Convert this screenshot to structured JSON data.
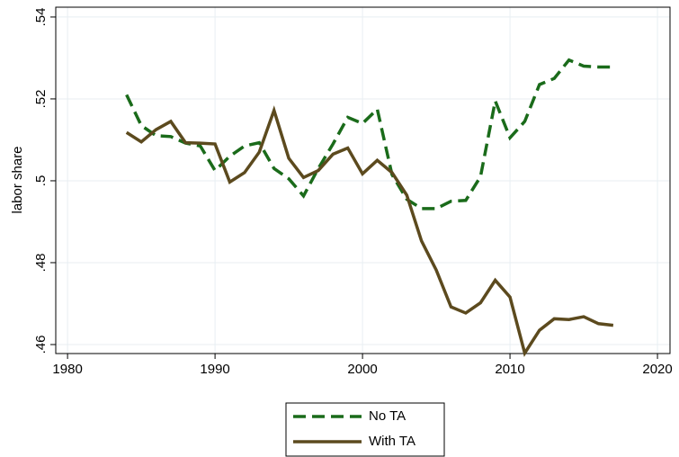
{
  "chart_data": {
    "type": "line",
    "y_label": "labor share",
    "x": [
      1984,
      1985,
      1986,
      1987,
      1988,
      1989,
      1990,
      1991,
      1992,
      1993,
      1994,
      1995,
      1996,
      1997,
      1998,
      1999,
      2000,
      2001,
      2002,
      2003,
      2004,
      2005,
      2006,
      2007,
      2008,
      2009,
      2010,
      2011,
      2012,
      2013,
      2014,
      2015,
      2016,
      2017
    ],
    "series": [
      {
        "name": "No TA",
        "color": "#1a6b1a",
        "dash": true,
        "values": [
          0.521,
          0.5135,
          0.511,
          0.5108,
          0.5092,
          0.5085,
          0.5025,
          0.506,
          0.5085,
          0.5093,
          0.503,
          0.5005,
          0.4963,
          0.503,
          0.509,
          0.5155,
          0.514,
          0.5175,
          0.5015,
          0.4955,
          0.4932,
          0.4932,
          0.495,
          0.4952,
          0.501,
          0.5195,
          0.5105,
          0.5145,
          0.5235,
          0.525,
          0.5295,
          0.528,
          0.5278,
          0.5278
        ]
      },
      {
        "name": "With TA",
        "color": "#5c4a1e",
        "dash": false,
        "values": [
          0.5118,
          0.5095,
          0.5125,
          0.5145,
          0.5093,
          0.5092,
          0.509,
          0.4997,
          0.502,
          0.507,
          0.5172,
          0.5055,
          0.5008,
          0.5025,
          0.5065,
          0.508,
          0.5017,
          0.505,
          0.502,
          0.4965,
          0.4853,
          0.4782,
          0.4692,
          0.4677,
          0.4702,
          0.4757,
          0.4716,
          0.4579,
          0.4635,
          0.4663,
          0.4661,
          0.4668,
          0.4651,
          0.4647
        ]
      }
    ],
    "xlim": [
      1979.2,
      2020.85
    ],
    "xticks": [
      1980,
      1990,
      2000,
      2010,
      2020
    ],
    "ylim": [
      0.4578,
      0.5424
    ],
    "yticks": [
      {
        "value": 0.46,
        "label": ".46"
      },
      {
        "value": 0.48,
        "label": ".48"
      },
      {
        "value": 0.5,
        "label": ".5"
      },
      {
        "value": 0.52,
        "label": ".52"
      },
      {
        "value": 0.54,
        "label": ".54"
      }
    ],
    "grid": true,
    "legend": "bottom"
  }
}
